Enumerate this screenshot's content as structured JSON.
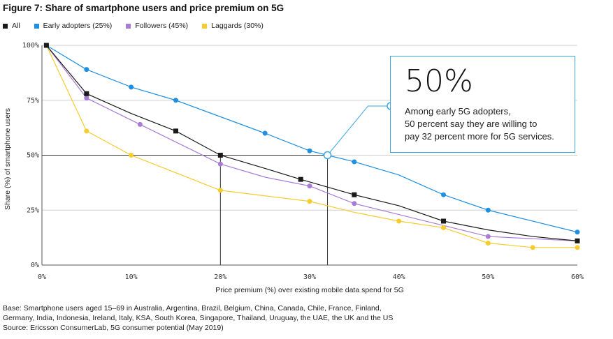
{
  "header": {
    "title": "Figure 7: Share of smartphone users and price premium on 5G"
  },
  "legend": [
    {
      "label": "All",
      "color": "#1a1a1a"
    },
    {
      "label": "Early adopters (25%)",
      "color": "#1e8fe1"
    },
    {
      "label": "Followers (45%)",
      "color": "#a87bd6"
    },
    {
      "label": "Laggards (30%)",
      "color": "#f5cc2e"
    }
  ],
  "callout": {
    "headline": "50%",
    "line1": "Among early 5G adopters,",
    "line2": "50 percent say they are willing to",
    "line3": "pay 32 percent more for 5G services."
  },
  "footnote": {
    "line1": "Base: Smartphone users aged 15–69 in Australia, Argentina, Brazil, Belgium, China, Canada, Chile, France, Finland,",
    "line2": "Germany, India, Indonesia, Ireland, Italy, KSA, South Korea, Singapore, Thailand, Uruguay, the UAE, the UK and the US",
    "line3": "Source: Ericsson ConsumerLab, 5G consumer potential (May 2019)"
  },
  "chart_data": {
    "type": "line",
    "xlabel": "Price premium (%) over existing mobile data spend for 5G",
    "ylabel": "Share (%) of smartphone users",
    "xlim": [
      0,
      60
    ],
    "ylim": [
      0,
      100
    ],
    "xticks": [
      0,
      10,
      20,
      30,
      40,
      50,
      60
    ],
    "xtick_labels": [
      "0%",
      "10%",
      "20%",
      "30%",
      "40%",
      "50%",
      "60%"
    ],
    "yticks": [
      0,
      25,
      50,
      75,
      100
    ],
    "ytick_labels": [
      "0%",
      "25%",
      "50%",
      "75%",
      "100%"
    ],
    "grid": "horizontal",
    "legend_position": "top-left",
    "series": [
      {
        "name": "All",
        "color": "#1a1a1a",
        "marker": "square",
        "x": [
          0.5,
          5,
          15,
          20,
          29,
          35,
          40,
          45,
          60
        ],
        "y": [
          100,
          78,
          61,
          50,
          39,
          32,
          null,
          20,
          11
        ],
        "line_x": [
          0.5,
          5,
          10,
          15,
          20,
          25,
          29,
          35,
          40,
          45,
          50,
          55,
          60
        ],
        "line_y": [
          100,
          78,
          69,
          61,
          50,
          44,
          39,
          32,
          27,
          20,
          16,
          13,
          11
        ],
        "markers_x": [
          0.5,
          5,
          15,
          20,
          29,
          35,
          45,
          60
        ],
        "markers_y": [
          100,
          78,
          61,
          50,
          39,
          32,
          20,
          11
        ]
      },
      {
        "name": "Early adopters (25%)",
        "color": "#1e8fe1",
        "marker": "circle",
        "line_x": [
          0.5,
          5,
          10,
          15,
          25,
          30,
          32,
          35,
          40,
          45,
          50,
          60
        ],
        "line_y": [
          100,
          89,
          81,
          75,
          60,
          52,
          50,
          47,
          41,
          32,
          25,
          15
        ],
        "markers_x": [
          0.5,
          5,
          10,
          15,
          25,
          30,
          35,
          45,
          50,
          60
        ],
        "markers_y": [
          100,
          89,
          81,
          75,
          60,
          52,
          47,
          32,
          25,
          15
        ]
      },
      {
        "name": "Followers (45%)",
        "color": "#a87bd6",
        "marker": "circle",
        "line_x": [
          0.5,
          5,
          11,
          20,
          25,
          30,
          35,
          40,
          45,
          50,
          60
        ],
        "line_y": [
          100,
          76,
          64,
          46,
          40,
          36,
          28,
          23,
          18,
          13,
          11
        ],
        "markers_x": [
          0.5,
          5,
          11,
          20,
          30,
          35,
          50,
          60
        ],
        "markers_y": [
          100,
          76,
          64,
          46,
          36,
          28,
          13,
          11
        ]
      },
      {
        "name": "Laggards (30%)",
        "color": "#f5cc2e",
        "marker": "circle",
        "line_x": [
          0.5,
          5,
          10,
          20,
          30,
          35,
          40,
          45,
          50,
          55,
          60
        ],
        "line_y": [
          100,
          61,
          50,
          34,
          29,
          24,
          20,
          17,
          10,
          8,
          8
        ],
        "markers_x": [
          0.5,
          5,
          10,
          20,
          30,
          40,
          45,
          50,
          55,
          60
        ],
        "markers_y": [
          100,
          61,
          50,
          34,
          29,
          20,
          17,
          10,
          8,
          8
        ]
      }
    ],
    "reference_lines": [
      {
        "type": "horizontal",
        "y": 50,
        "x_from": 0,
        "x_to": 32
      },
      {
        "type": "vertical",
        "x": 20,
        "y_from": 0,
        "y_to": 50
      },
      {
        "type": "vertical",
        "x": 32,
        "y_from": 0,
        "y_to": 50
      }
    ],
    "highlight_point": {
      "x": 32,
      "y": 50,
      "series": "Early adopters (25%)"
    }
  }
}
